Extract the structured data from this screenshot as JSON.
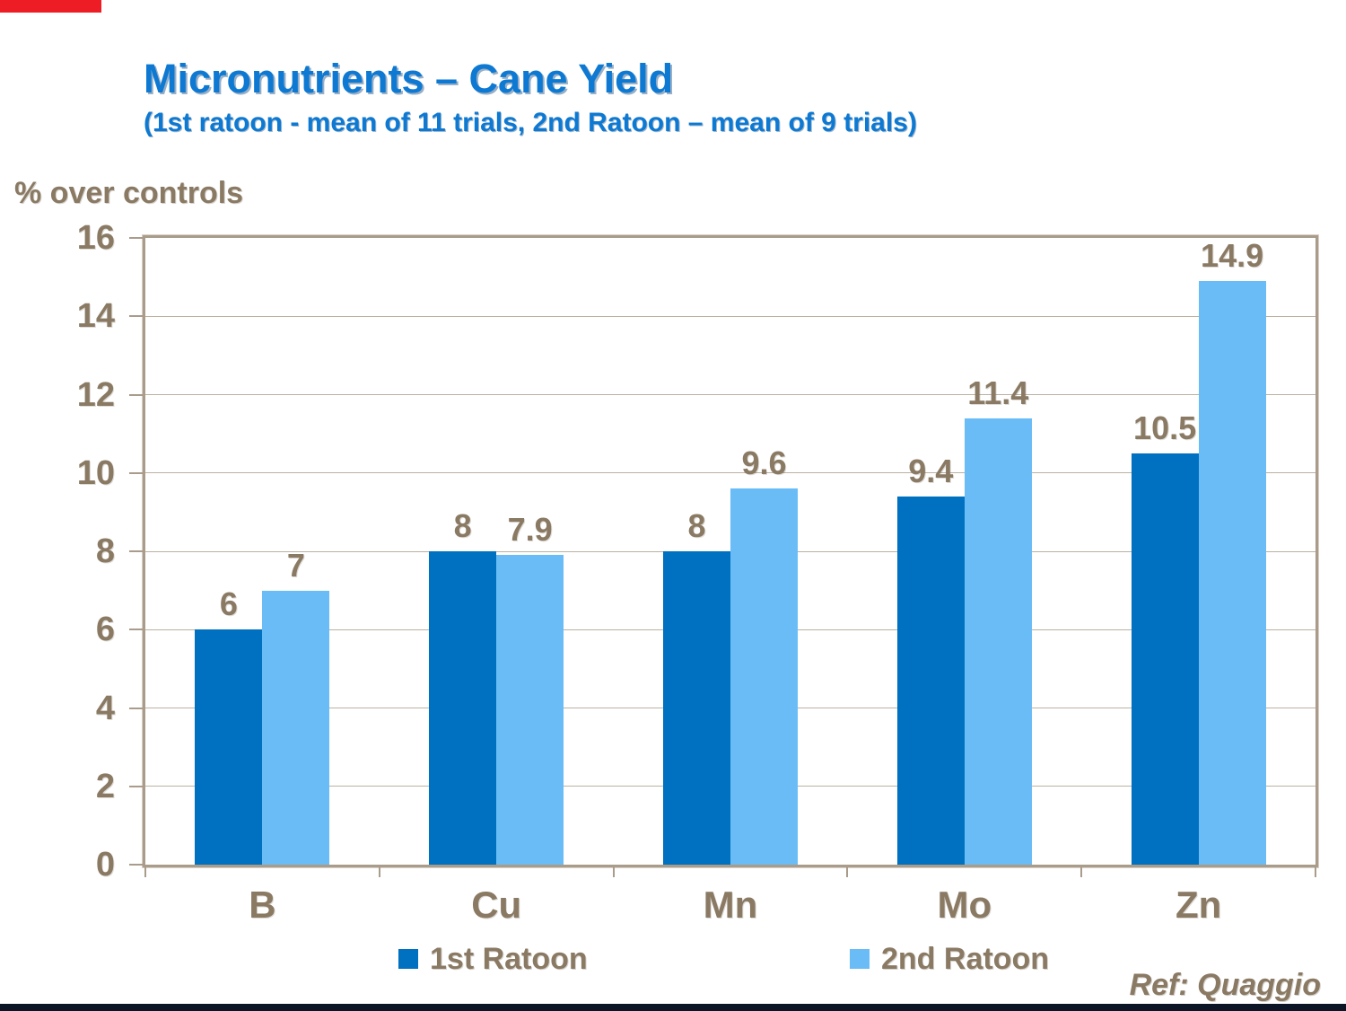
{
  "slide": {
    "title": "Micronutrients – Cane Yield",
    "subtitle": "(1st ratoon - mean of 11 trials, 2nd Ratoon – mean of 9 trials)",
    "reference": "Ref: Quaggio"
  },
  "chart_data": {
    "type": "bar",
    "title": "Micronutrients – Cane Yield",
    "subtitle": "(1st ratoon - mean of 11 trials, 2nd Ratoon – mean of 9 trials)",
    "ylabel": "% over controls",
    "xlabel": "",
    "categories": [
      "B",
      "Cu",
      "Mn",
      "Mo",
      "Zn"
    ],
    "series": [
      {
        "name": "1st Ratoon",
        "color": "#0070c0",
        "values": [
          6,
          8,
          8,
          9.4,
          10.5
        ]
      },
      {
        "name": "2nd Ratoon",
        "color": "#6abcf7",
        "values": [
          7,
          7.9,
          9.6,
          11.4,
          14.9
        ]
      }
    ],
    "data_labels": [
      "6",
      "7",
      "8",
      "7.9",
      "8",
      "9.6",
      "9.4",
      "11.4",
      "10.5",
      "14.9"
    ],
    "ylim": [
      0,
      16
    ],
    "ytick_step": 2,
    "yticks": [
      0,
      2,
      4,
      6,
      8,
      10,
      12,
      14,
      16
    ],
    "grid": true,
    "legend_position": "bottom"
  },
  "colors": {
    "title_blue": "#0d79d2",
    "text_brown": "#8a7a64",
    "axis_taupe": "#a99c8b",
    "gridline": "#bdb1a2",
    "bar_dark_blue": "#0070c0",
    "bar_light_blue": "#6abcf7",
    "accent_red": "#ee1c25",
    "footer_navy": "#0b1526"
  }
}
